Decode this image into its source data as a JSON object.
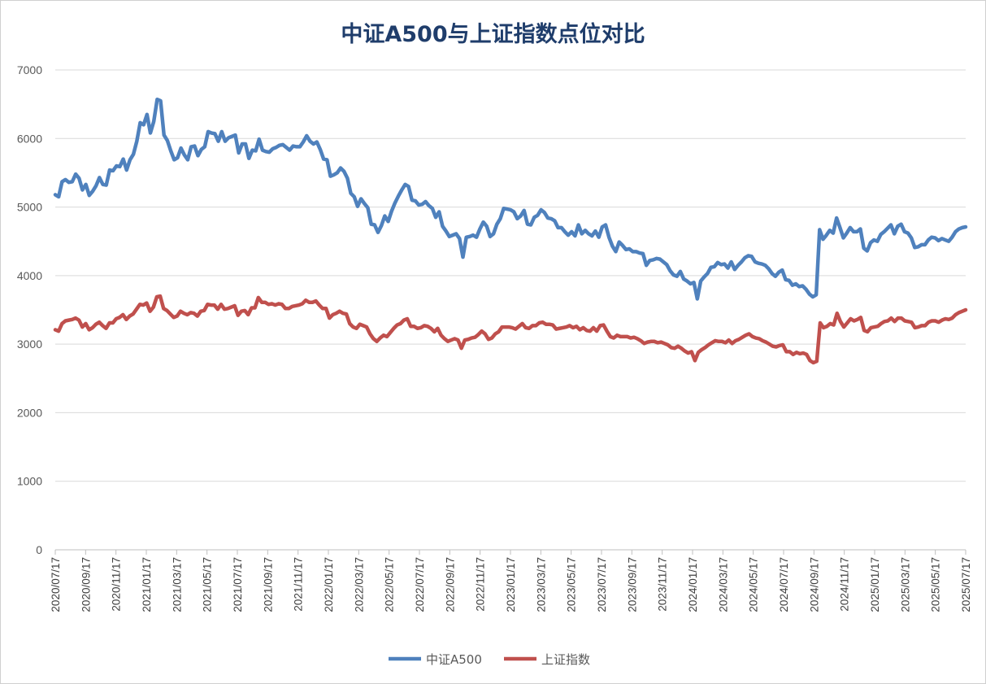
{
  "chart_data": {
    "type": "line",
    "title": "中证A500与上证指数点位对比",
    "xlabel": "",
    "ylabel": "",
    "ylim": [
      0,
      7000
    ],
    "yticks": [
      0,
      1000,
      2000,
      3000,
      4000,
      5000,
      6000,
      7000
    ],
    "grid": true,
    "legend_position": "bottom",
    "x_start": "2020/07/17",
    "x_end": "2025/07/17",
    "x_tick_labels": [
      "2020/07/17",
      "2020/09/17",
      "2020/11/17",
      "2021/01/17",
      "2021/03/17",
      "2021/05/17",
      "2021/07/17",
      "2021/09/17",
      "2021/11/17",
      "2022/01/17",
      "2022/03/17",
      "2022/05/17",
      "2022/07/17",
      "2022/09/17",
      "2022/11/17",
      "2023/01/17",
      "2023/03/17",
      "2023/05/17",
      "2023/07/17",
      "2023/09/17",
      "2023/11/17",
      "2024/01/17",
      "2024/03/17",
      "2024/05/17",
      "2024/07/17",
      "2024/09/17",
      "2024/11/17",
      "2025/01/17",
      "2025/03/17",
      "2025/05/17",
      "2025/07/17"
    ],
    "series": [
      {
        "name": "中证A500",
        "color": "#4f81bd",
        "values": [
          5180,
          5150,
          5370,
          5400,
          5360,
          5370,
          5480,
          5420,
          5250,
          5330,
          5170,
          5230,
          5310,
          5430,
          5330,
          5320,
          5540,
          5530,
          5600,
          5590,
          5700,
          5540,
          5690,
          5770,
          5960,
          6230,
          6200,
          6350,
          6080,
          6250,
          6570,
          6550,
          6050,
          5970,
          5820,
          5690,
          5720,
          5860,
          5760,
          5690,
          5880,
          5890,
          5750,
          5840,
          5880,
          6100,
          6080,
          6070,
          5960,
          6100,
          5960,
          6010,
          6030,
          6050,
          5790,
          5920,
          5920,
          5710,
          5830,
          5820,
          5990,
          5830,
          5810,
          5800,
          5850,
          5870,
          5900,
          5910,
          5870,
          5830,
          5890,
          5880,
          5880,
          5950,
          6040,
          5960,
          5920,
          5950,
          5840,
          5700,
          5690,
          5450,
          5470,
          5500,
          5570,
          5520,
          5420,
          5200,
          5150,
          5010,
          5120,
          5050,
          4990,
          4750,
          4740,
          4630,
          4730,
          4870,
          4790,
          4940,
          5060,
          5160,
          5250,
          5330,
          5300,
          5100,
          5090,
          5030,
          5040,
          5080,
          5020,
          4980,
          4850,
          4930,
          4720,
          4650,
          4570,
          4590,
          4610,
          4540,
          4270,
          4560,
          4570,
          4590,
          4560,
          4680,
          4780,
          4720,
          4570,
          4610,
          4750,
          4830,
          4980,
          4970,
          4960,
          4930,
          4830,
          4870,
          4950,
          4750,
          4740,
          4850,
          4880,
          4960,
          4920,
          4840,
          4830,
          4800,
          4700,
          4700,
          4640,
          4590,
          4640,
          4580,
          4740,
          4610,
          4660,
          4610,
          4580,
          4650,
          4560,
          4710,
          4740,
          4560,
          4430,
          4350,
          4490,
          4440,
          4380,
          4390,
          4350,
          4350,
          4330,
          4320,
          4150,
          4220,
          4230,
          4250,
          4240,
          4200,
          4160,
          4070,
          4010,
          3990,
          4060,
          3950,
          3920,
          3880,
          3900,
          3660,
          3920,
          3980,
          4030,
          4120,
          4130,
          4190,
          4160,
          4170,
          4110,
          4200,
          4090,
          4150,
          4200,
          4260,
          4290,
          4280,
          4200,
          4180,
          4170,
          4150,
          4100,
          4030,
          3990,
          4050,
          4080,
          3940,
          3930,
          3860,
          3880,
          3840,
          3850,
          3800,
          3730,
          3690,
          3720,
          4670,
          4530,
          4590,
          4660,
          4620,
          4840,
          4700,
          4550,
          4620,
          4700,
          4640,
          4640,
          4680,
          4400,
          4360,
          4480,
          4520,
          4500,
          4600,
          4640,
          4690,
          4740,
          4610,
          4720,
          4750,
          4640,
          4620,
          4550,
          4410,
          4420,
          4450,
          4450,
          4520,
          4560,
          4550,
          4510,
          4540,
          4520,
          4500,
          4560,
          4640,
          4680,
          4700,
          4710
        ]
      },
      {
        "name": "上证指数",
        "color": "#c0504d",
        "values": [
          3210,
          3190,
          3300,
          3340,
          3350,
          3360,
          3380,
          3350,
          3250,
          3300,
          3210,
          3240,
          3290,
          3320,
          3270,
          3230,
          3310,
          3310,
          3370,
          3390,
          3430,
          3360,
          3410,
          3440,
          3510,
          3580,
          3570,
          3600,
          3480,
          3540,
          3690,
          3700,
          3520,
          3490,
          3440,
          3390,
          3410,
          3480,
          3450,
          3430,
          3460,
          3450,
          3410,
          3480,
          3490,
          3580,
          3570,
          3570,
          3510,
          3580,
          3510,
          3520,
          3540,
          3560,
          3420,
          3480,
          3490,
          3430,
          3530,
          3530,
          3680,
          3610,
          3610,
          3580,
          3590,
          3570,
          3590,
          3580,
          3520,
          3520,
          3550,
          3560,
          3570,
          3590,
          3640,
          3610,
          3610,
          3630,
          3570,
          3520,
          3520,
          3380,
          3430,
          3450,
          3480,
          3450,
          3440,
          3300,
          3250,
          3230,
          3290,
          3270,
          3250,
          3150,
          3080,
          3040,
          3090,
          3130,
          3110,
          3170,
          3230,
          3280,
          3300,
          3350,
          3370,
          3260,
          3260,
          3230,
          3240,
          3270,
          3260,
          3230,
          3180,
          3230,
          3130,
          3080,
          3040,
          3060,
          3080,
          3060,
          2940,
          3060,
          3070,
          3090,
          3100,
          3140,
          3190,
          3150,
          3070,
          3090,
          3150,
          3180,
          3250,
          3250,
          3250,
          3240,
          3220,
          3260,
          3300,
          3240,
          3230,
          3270,
          3270,
          3310,
          3320,
          3290,
          3290,
          3280,
          3220,
          3230,
          3240,
          3250,
          3270,
          3240,
          3260,
          3210,
          3240,
          3200,
          3190,
          3240,
          3190,
          3270,
          3280,
          3190,
          3110,
          3090,
          3130,
          3110,
          3110,
          3110,
          3090,
          3100,
          3080,
          3050,
          3010,
          3030,
          3040,
          3040,
          3020,
          3030,
          3010,
          2990,
          2950,
          2940,
          2970,
          2940,
          2900,
          2870,
          2890,
          2760,
          2880,
          2920,
          2950,
          2990,
          3020,
          3050,
          3040,
          3040,
          3020,
          3060,
          3010,
          3050,
          3070,
          3100,
          3130,
          3150,
          3110,
          3090,
          3080,
          3050,
          3030,
          3000,
          2970,
          2960,
          2980,
          2990,
          2890,
          2890,
          2850,
          2880,
          2860,
          2870,
          2850,
          2760,
          2730,
          2750,
          3310,
          3240,
          3260,
          3300,
          3280,
          3450,
          3330,
          3250,
          3310,
          3370,
          3340,
          3360,
          3390,
          3200,
          3180,
          3240,
          3250,
          3260,
          3300,
          3330,
          3340,
          3380,
          3330,
          3380,
          3380,
          3340,
          3330,
          3320,
          3240,
          3250,
          3270,
          3270,
          3320,
          3340,
          3340,
          3320,
          3350,
          3370,
          3360,
          3380,
          3430,
          3460,
          3480,
          3500
        ]
      }
    ]
  }
}
